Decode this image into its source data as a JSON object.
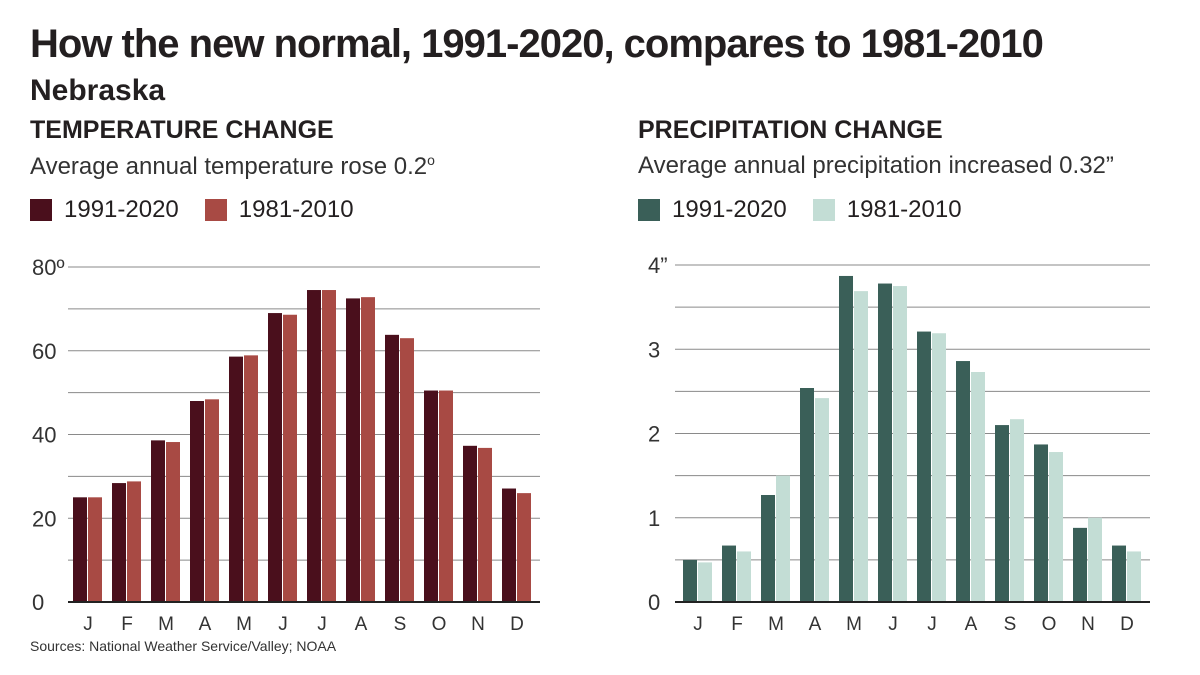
{
  "header": {
    "title": "How the new normal, 1991-2020, compares to 1981-2010",
    "subtitle": "Nebraska"
  },
  "source": "Sources: National Weather Service/Valley; NOAA",
  "chart_data": [
    {
      "type": "bar",
      "title": "TEMPERATURE CHANGE",
      "subtitle": "Average annual temperature rose 0.2",
      "subtitle_sup": "o",
      "categories": [
        "J",
        "F",
        "M",
        "A",
        "M",
        "J",
        "J",
        "A",
        "S",
        "O",
        "N",
        "D"
      ],
      "series": [
        {
          "name": "1991-2020",
          "color": "#4a0f1c",
          "values": [
            25.0,
            28.4,
            38.6,
            48.0,
            58.6,
            69.0,
            74.5,
            72.5,
            63.8,
            50.5,
            37.3,
            27.1
          ]
        },
        {
          "name": "1981-2010",
          "color": "#a84a44",
          "values": [
            25.0,
            28.8,
            38.2,
            48.4,
            58.9,
            68.6,
            74.5,
            72.8,
            63.0,
            50.5,
            36.8,
            26.0
          ]
        }
      ],
      "ylim": [
        0,
        80
      ],
      "yticks": [
        0,
        20,
        40,
        60,
        80
      ],
      "ytick_labels": [
        "0",
        "20",
        "40",
        "60",
        "80º"
      ]
    },
    {
      "type": "bar",
      "title": "PRECIPITATION CHANGE",
      "subtitle": "Average annual precipitation increased 0.32”",
      "categories": [
        "J",
        "F",
        "M",
        "A",
        "M",
        "J",
        "J",
        "A",
        "S",
        "O",
        "N",
        "D"
      ],
      "series": [
        {
          "name": "1991-2020",
          "color": "#3a5f58",
          "values": [
            0.5,
            0.67,
            1.27,
            2.54,
            3.87,
            3.78,
            3.21,
            2.86,
            2.1,
            1.87,
            0.88,
            0.67
          ]
        },
        {
          "name": "1981-2010",
          "color": "#c3ddd5",
          "values": [
            0.47,
            0.6,
            1.5,
            2.42,
            3.69,
            3.75,
            3.19,
            2.73,
            2.17,
            1.78,
            1.0,
            0.6
          ]
        }
      ],
      "ylim": [
        0,
        4
      ],
      "yticks": [
        0,
        1,
        2,
        3,
        4
      ],
      "ytick_labels": [
        "0",
        "1",
        "2",
        "3",
        "4”"
      ]
    }
  ]
}
